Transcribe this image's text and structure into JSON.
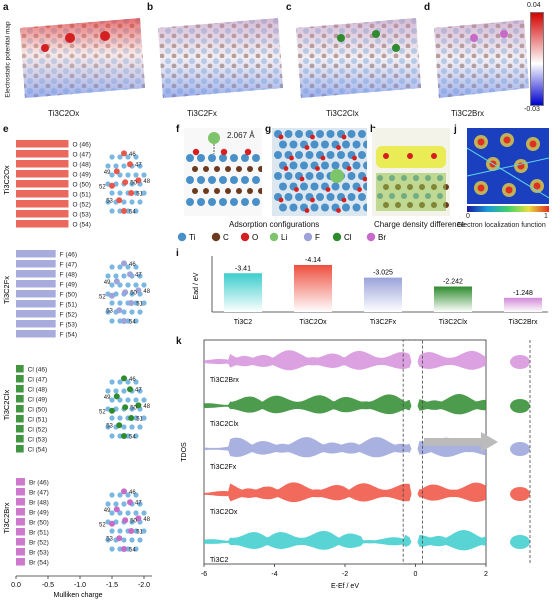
{
  "panels": {
    "a": {
      "letter": "a",
      "label": "Ti3C2Ox",
      "side_label": "Electrostatic potential map"
    },
    "b": {
      "letter": "b",
      "label": "Ti3C2Fx"
    },
    "c": {
      "letter": "c",
      "label": "Ti3C2Clx"
    },
    "d": {
      "letter": "d",
      "label": "Ti3C2Brx"
    },
    "colorbar": {
      "max": "0.04",
      "min": "-0.03"
    },
    "e": {
      "letter": "e",
      "axis_label": "Mulliken charge",
      "ticks": [
        "0.0",
        "-0.5",
        "-1.0",
        "-1.5",
        "-2.0"
      ]
    },
    "f": {
      "letter": "f",
      "bond": "2.067 Å"
    },
    "g": {
      "letter": "g"
    },
    "h": {
      "letter": "h"
    },
    "i": {
      "letter": "i"
    },
    "j": {
      "letter": "j",
      "scale_min": "0",
      "scale_max": "1",
      "caption": "Electron localization function"
    },
    "k": {
      "letter": "k"
    },
    "fg_caption": "Adsorption configurations",
    "h_caption": "Charge density difference"
  },
  "legend": [
    {
      "name": "Ti",
      "color": "#4a90c8"
    },
    {
      "name": "C",
      "color": "#6b3a1f"
    },
    {
      "name": "O",
      "color": "#d42020"
    },
    {
      "name": "Li",
      "color": "#7dc46a"
    },
    {
      "name": "F",
      "color": "#9da3d8"
    },
    {
      "name": "Cl",
      "color": "#2e8b2e"
    },
    {
      "name": "Br",
      "color": "#c86ac8"
    }
  ],
  "charge_groups": [
    {
      "name": "Ti3C2Ox",
      "element": "O",
      "color": "#e8584a",
      "rows": [
        "O (46)",
        "O (47)",
        "O (48)",
        "O (49)",
        "O (50)",
        "O (51)",
        "O (52)",
        "O (53)",
        "O (54)"
      ]
    },
    {
      "name": "Ti3C2Fx",
      "element": "F",
      "color": "#9da3d8",
      "rows": [
        "F (46)",
        "F (47)",
        "F (48)",
        "F (49)",
        "F (50)",
        "F (51)",
        "F (52)",
        "F (53)",
        "F (54)"
      ]
    },
    {
      "name": "Ti3C2Clx",
      "element": "Cl",
      "color": "#2e8b2e",
      "rows": [
        "Cl (46)",
        "Cl (47)",
        "Cl (48)",
        "Cl (49)",
        "Cl (50)",
        "Cl (51)",
        "Cl (52)",
        "Cl (53)",
        "Cl (54)"
      ]
    },
    {
      "name": "Ti3C2Brx",
      "element": "Br",
      "color": "#c86ac8",
      "rows": [
        "Br (46)",
        "Br (47)",
        "Br (48)",
        "Br (49)",
        "Br (50)",
        "Br (51)",
        "Br (52)",
        "Br (53)",
        "Br (54)"
      ]
    }
  ],
  "lattice_numbers": [
    "46",
    "47",
    "48",
    "49",
    "50",
    "51",
    "52",
    "53",
    "54"
  ],
  "chart_data": [
    {
      "type": "bar",
      "ylabel": "Ead / eV",
      "categories": [
        "Ti3C2",
        "Ti3C2Ox",
        "Ti3C2Fx",
        "Ti3C2Clx",
        "Ti3C2Brx"
      ],
      "values": [
        -3.41,
        -4.14,
        -3.025,
        -2.242,
        -1.248
      ],
      "value_labels": [
        "-3.41",
        "-4.14",
        "-3.025",
        "-2.242",
        "-1.248"
      ],
      "colors": [
        "#3ccdcd",
        "#ee5040",
        "#9aa3da",
        "#2e8b2e",
        "#d28ad8"
      ]
    },
    {
      "type": "area",
      "ylabel": "TDOS",
      "xlabel": "E-Ef / eV",
      "xlim": [
        -6,
        2
      ],
      "x_ticks": [
        "-6",
        "-4",
        "-2",
        "0",
        "2"
      ],
      "series": [
        {
          "name": "Ti3C2Brx",
          "color": "#d590dc"
        },
        {
          "name": "Ti3C2Clx",
          "color": "#2e8b2e"
        },
        {
          "name": "Ti3C2Fx",
          "color": "#9aa3da"
        },
        {
          "name": "Ti3C2Ox",
          "color": "#ee5040"
        },
        {
          "name": "Ti3C2",
          "color": "#3ccdcd"
        }
      ]
    }
  ]
}
